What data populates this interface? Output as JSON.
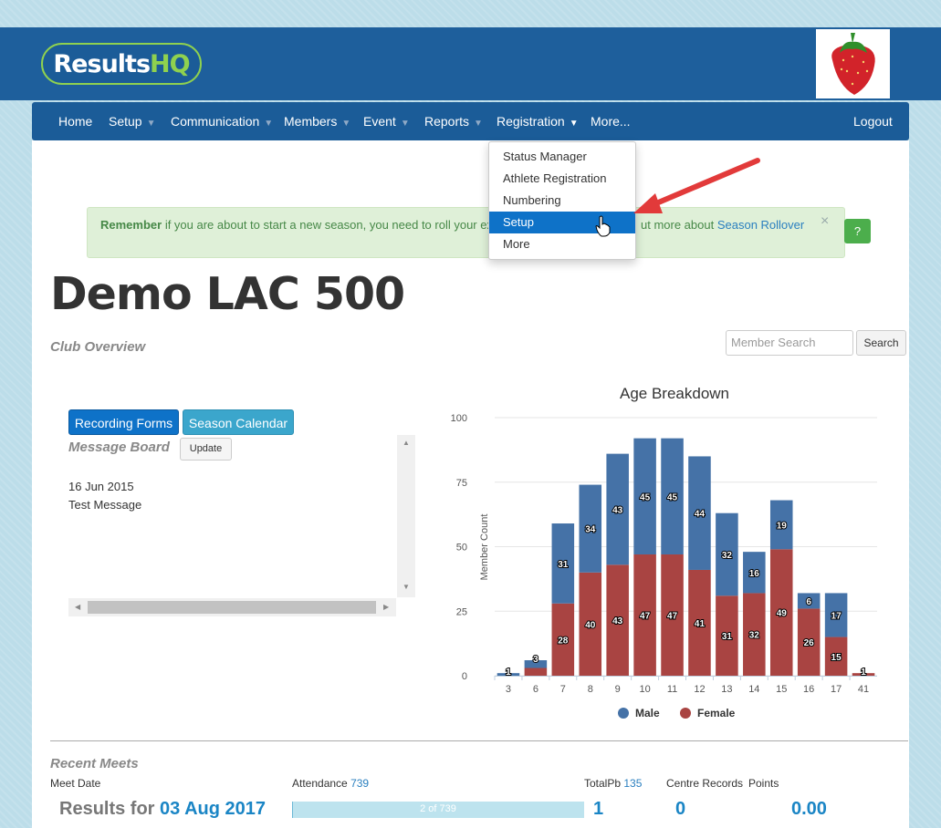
{
  "header": {
    "logo_white": "Results",
    "logo_green": "HQ",
    "club_logo": "strawberry-icon"
  },
  "nav": {
    "items": [
      {
        "label": "Home",
        "caret": false
      },
      {
        "label": "Setup",
        "caret": true
      },
      {
        "label": "Communication",
        "caret": true
      },
      {
        "label": "Members",
        "caret": true
      },
      {
        "label": "Event",
        "caret": true
      },
      {
        "label": "Reports",
        "caret": true
      },
      {
        "label": "Registration",
        "caret": true
      },
      {
        "label": "More...",
        "caret": false
      }
    ],
    "logout": "Logout"
  },
  "dropdown": {
    "items": [
      "Status Manager",
      "Athlete Registration",
      "Numbering",
      "Setup",
      "More"
    ],
    "active": "Setup"
  },
  "alert": {
    "bold": "Remember",
    "text": " if you are about to start a new season, you need to roll your ex",
    "text2": "ut more about ",
    "link": "Season Rollover",
    "close": "×",
    "help": "?"
  },
  "page": {
    "title": "Demo LAC 500",
    "overview": "Club Overview",
    "search_placeholder": "Member Search",
    "search_button": "Search"
  },
  "buttons": {
    "recording": "Recording Forms",
    "calendar": "Season Calendar"
  },
  "message_board": {
    "title": "Message Board",
    "update": "Update",
    "date": "16 Jun 2015",
    "text": "Test Message"
  },
  "chart_data": {
    "type": "bar",
    "stacked": true,
    "title": "Age Breakdown",
    "ylabel": "Member Count",
    "xlabel": "",
    "ylim": [
      0,
      100
    ],
    "yticks": [
      0,
      25,
      50,
      75,
      100
    ],
    "categories": [
      "3",
      "6",
      "7",
      "8",
      "9",
      "10",
      "11",
      "12",
      "13",
      "14",
      "15",
      "16",
      "17",
      "41"
    ],
    "series": [
      {
        "name": "Female",
        "color": "#a94442",
        "values": [
          0,
          3,
          28,
          40,
          43,
          47,
          47,
          41,
          31,
          32,
          49,
          26,
          15,
          1
        ]
      },
      {
        "name": "Male",
        "color": "#4572a7",
        "values": [
          1,
          3,
          31,
          34,
          43,
          45,
          45,
          44,
          32,
          16,
          19,
          6,
          17,
          0
        ]
      }
    ],
    "segment_labels": {
      "Female": [
        null,
        null,
        "28",
        "40",
        "43",
        "47",
        "47",
        "41",
        "31",
        "32",
        "49",
        "26",
        "15",
        "1"
      ],
      "Male": [
        "1",
        "3",
        "31",
        "34",
        "43",
        "45",
        "45",
        "44",
        "32",
        "16",
        "19",
        "6",
        "17",
        null
      ]
    },
    "legend": [
      "Male",
      "Female"
    ],
    "legend_position": "bottom",
    "grid": true
  },
  "recent": {
    "title": "Recent Meets",
    "meet_date": "Meet Date",
    "attendance_label": "Attendance ",
    "attendance_value": "739",
    "totalpb_label": "TotalPb ",
    "totalpb_value": "135",
    "centre_records": "Centre Records",
    "points": "Points",
    "results_label": "Results for ",
    "results_date": "03 Aug 2017",
    "progress_text": "2 of 739",
    "progress": 0.0027,
    "pb": "1",
    "records": "0",
    "points_value": "0.00"
  }
}
